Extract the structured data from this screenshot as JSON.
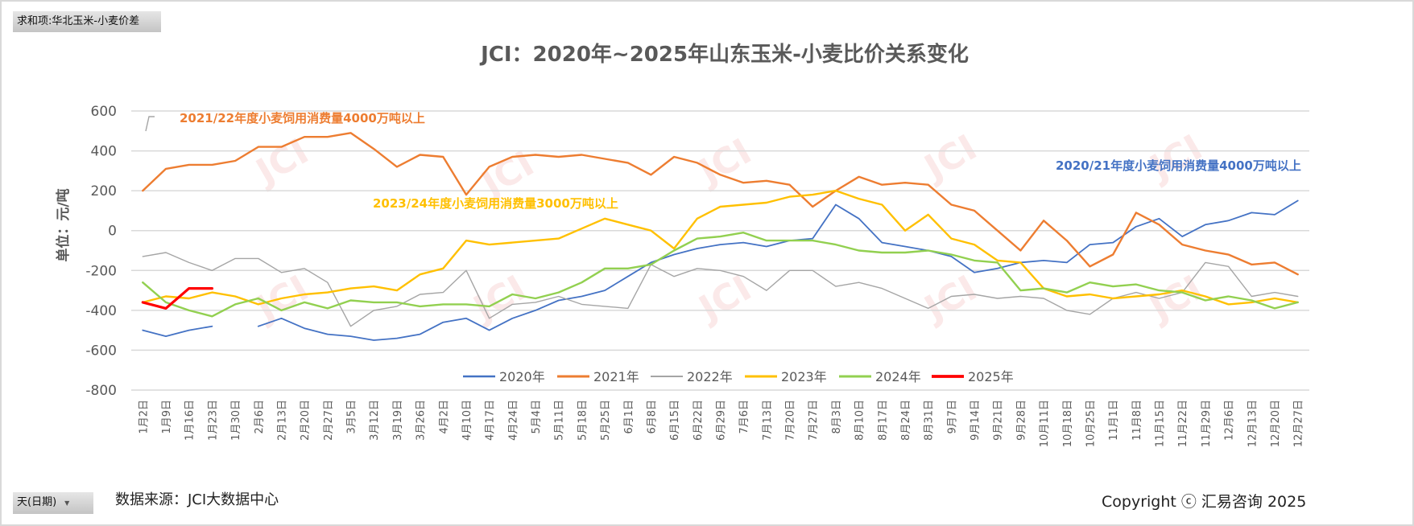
{
  "pivot": {
    "value_field_label": "求和项:华北玉米-小麦价差",
    "row_field_label": "天(日期)",
    "row_field_arrow": "▼"
  },
  "footer": {
    "source": "数据来源：JCI大数据中心",
    "copyright": "Copyright ⓒ 汇易咨询 2025"
  },
  "watermark": "JCI",
  "chart_data": {
    "type": "line",
    "title": "JCI：2020年~2025年山东玉米-小麦比价关系变化",
    "ylabel": "单位：元/吨",
    "xlabel": "",
    "ylim": [
      -800,
      600
    ],
    "yticks": [
      600,
      400,
      200,
      0,
      -200,
      -400,
      -600,
      -800
    ],
    "grid": true,
    "legend_position": "bottom",
    "categories": [
      "1月2日",
      "1月9日",
      "1月16日",
      "1月23日",
      "1月30日",
      "2月6日",
      "2月13日",
      "2月20日",
      "2月27日",
      "3月5日",
      "3月12日",
      "3月19日",
      "3月26日",
      "4月2日",
      "4月10日",
      "4月17日",
      "4月24日",
      "5月4日",
      "5月11日",
      "5月18日",
      "5月25日",
      "6月1日",
      "6月8日",
      "6月15日",
      "6月22日",
      "6月29日",
      "7月6日",
      "7月13日",
      "7月20日",
      "7月27日",
      "8月3日",
      "8月10日",
      "8月17日",
      "8月24日",
      "8月31日",
      "9月7日",
      "9月14日",
      "9月21日",
      "9月28日",
      "10月11日",
      "10月18日",
      "10月25日",
      "11月1日",
      "11月8日",
      "11月15日",
      "11月22日",
      "11月29日",
      "12月6日",
      "12月13日",
      "12月20日",
      "12月27日"
    ],
    "series": [
      {
        "name": "2020年",
        "color": "#4472C4",
        "width": 1.8,
        "values": [
          -500,
          -530,
          -500,
          -480,
          null,
          -480,
          -440,
          -490,
          -520,
          -530,
          -550,
          -540,
          -520,
          -460,
          -440,
          -500,
          -440,
          -400,
          -350,
          -330,
          -300,
          -230,
          -160,
          -120,
          -90,
          -70,
          -60,
          -80,
          -50,
          -40,
          130,
          60,
          -60,
          -80,
          -100,
          -130,
          -210,
          -190,
          -160,
          -150,
          -160,
          -70,
          -60,
          20,
          60,
          -30,
          30,
          50,
          90,
          80,
          150
        ]
      },
      {
        "name": "2021年",
        "color": "#ED7D31",
        "width": 2.4,
        "values": [
          200,
          310,
          330,
          330,
          350,
          420,
          420,
          470,
          470,
          490,
          410,
          320,
          380,
          370,
          180,
          320,
          370,
          380,
          370,
          380,
          360,
          340,
          280,
          370,
          340,
          280,
          240,
          250,
          230,
          120,
          200,
          270,
          230,
          240,
          230,
          130,
          100,
          0,
          -100,
          50,
          -50,
          -180,
          -120,
          90,
          30,
          -70,
          -100,
          -120,
          -170,
          -160,
          -220
        ]
      },
      {
        "name": "2022年",
        "color": "#A5A5A5",
        "width": 1.4,
        "values": [
          -130,
          -110,
          -160,
          -200,
          -140,
          -140,
          -210,
          -190,
          -260,
          -480,
          -400,
          -380,
          -320,
          -310,
          -200,
          -440,
          -370,
          -360,
          -330,
          -370,
          -380,
          -390,
          -170,
          -230,
          -190,
          -200,
          -230,
          -300,
          -200,
          -200,
          -280,
          -260,
          -290,
          -340,
          -390,
          -330,
          -320,
          -340,
          -330,
          -340,
          -400,
          -420,
          -340,
          -310,
          -340,
          -310,
          -160,
          -180,
          -330,
          -310,
          -330
        ]
      },
      {
        "name": "2023年",
        "color": "#FFC000",
        "width": 2.4,
        "values": [
          -360,
          -330,
          -340,
          -310,
          -330,
          -370,
          -340,
          -320,
          -310,
          -290,
          -280,
          -300,
          -220,
          -190,
          -50,
          -70,
          -60,
          -50,
          -40,
          10,
          60,
          30,
          0,
          -90,
          60,
          120,
          130,
          140,
          170,
          180,
          200,
          160,
          130,
          0,
          80,
          -40,
          -70,
          -150,
          -160,
          -290,
          -330,
          -320,
          -340,
          -330,
          -320,
          -300,
          -330,
          -370,
          -360,
          -340,
          -360
        ]
      },
      {
        "name": "2024年",
        "color": "#92D050",
        "width": 2.4,
        "values": [
          -260,
          -360,
          -400,
          -430,
          -370,
          -340,
          -400,
          -360,
          -390,
          -350,
          -360,
          -360,
          -380,
          -370,
          -370,
          -380,
          -320,
          -340,
          -310,
          -260,
          -190,
          -190,
          -170,
          -100,
          -40,
          -30,
          -10,
          -50,
          -50,
          -50,
          -70,
          -100,
          -110,
          -110,
          -100,
          -120,
          -150,
          -160,
          -300,
          -290,
          -310,
          -260,
          -280,
          -270,
          -300,
          -310,
          -350,
          -330,
          -350,
          -390,
          -360
        ]
      },
      {
        "name": "2025年",
        "color": "#FF0000",
        "width": 3.2,
        "values": [
          -360,
          -390,
          -290,
          -290,
          null,
          null,
          null,
          null,
          null,
          null,
          null,
          null,
          null,
          null,
          null,
          null,
          null,
          null,
          null,
          null,
          null,
          null,
          null,
          null,
          null,
          null,
          null,
          null,
          null,
          null,
          null,
          null,
          null,
          null,
          null,
          null,
          null,
          null,
          null,
          null,
          null,
          null,
          null,
          null,
          null,
          null,
          null,
          null,
          null,
          null,
          null
        ]
      }
    ],
    "annotations": [
      {
        "text": "2021/22年度小麦饲用消费量4000万吨以上",
        "color": "#ED7D31"
      },
      {
        "text": "2023/24年度小麦饲用消费量3000万吨以上",
        "color": "#FFC000"
      },
      {
        "text": "2020/21年度小麦饲用消费量4000万吨以上",
        "color": "#4472C4"
      }
    ]
  }
}
